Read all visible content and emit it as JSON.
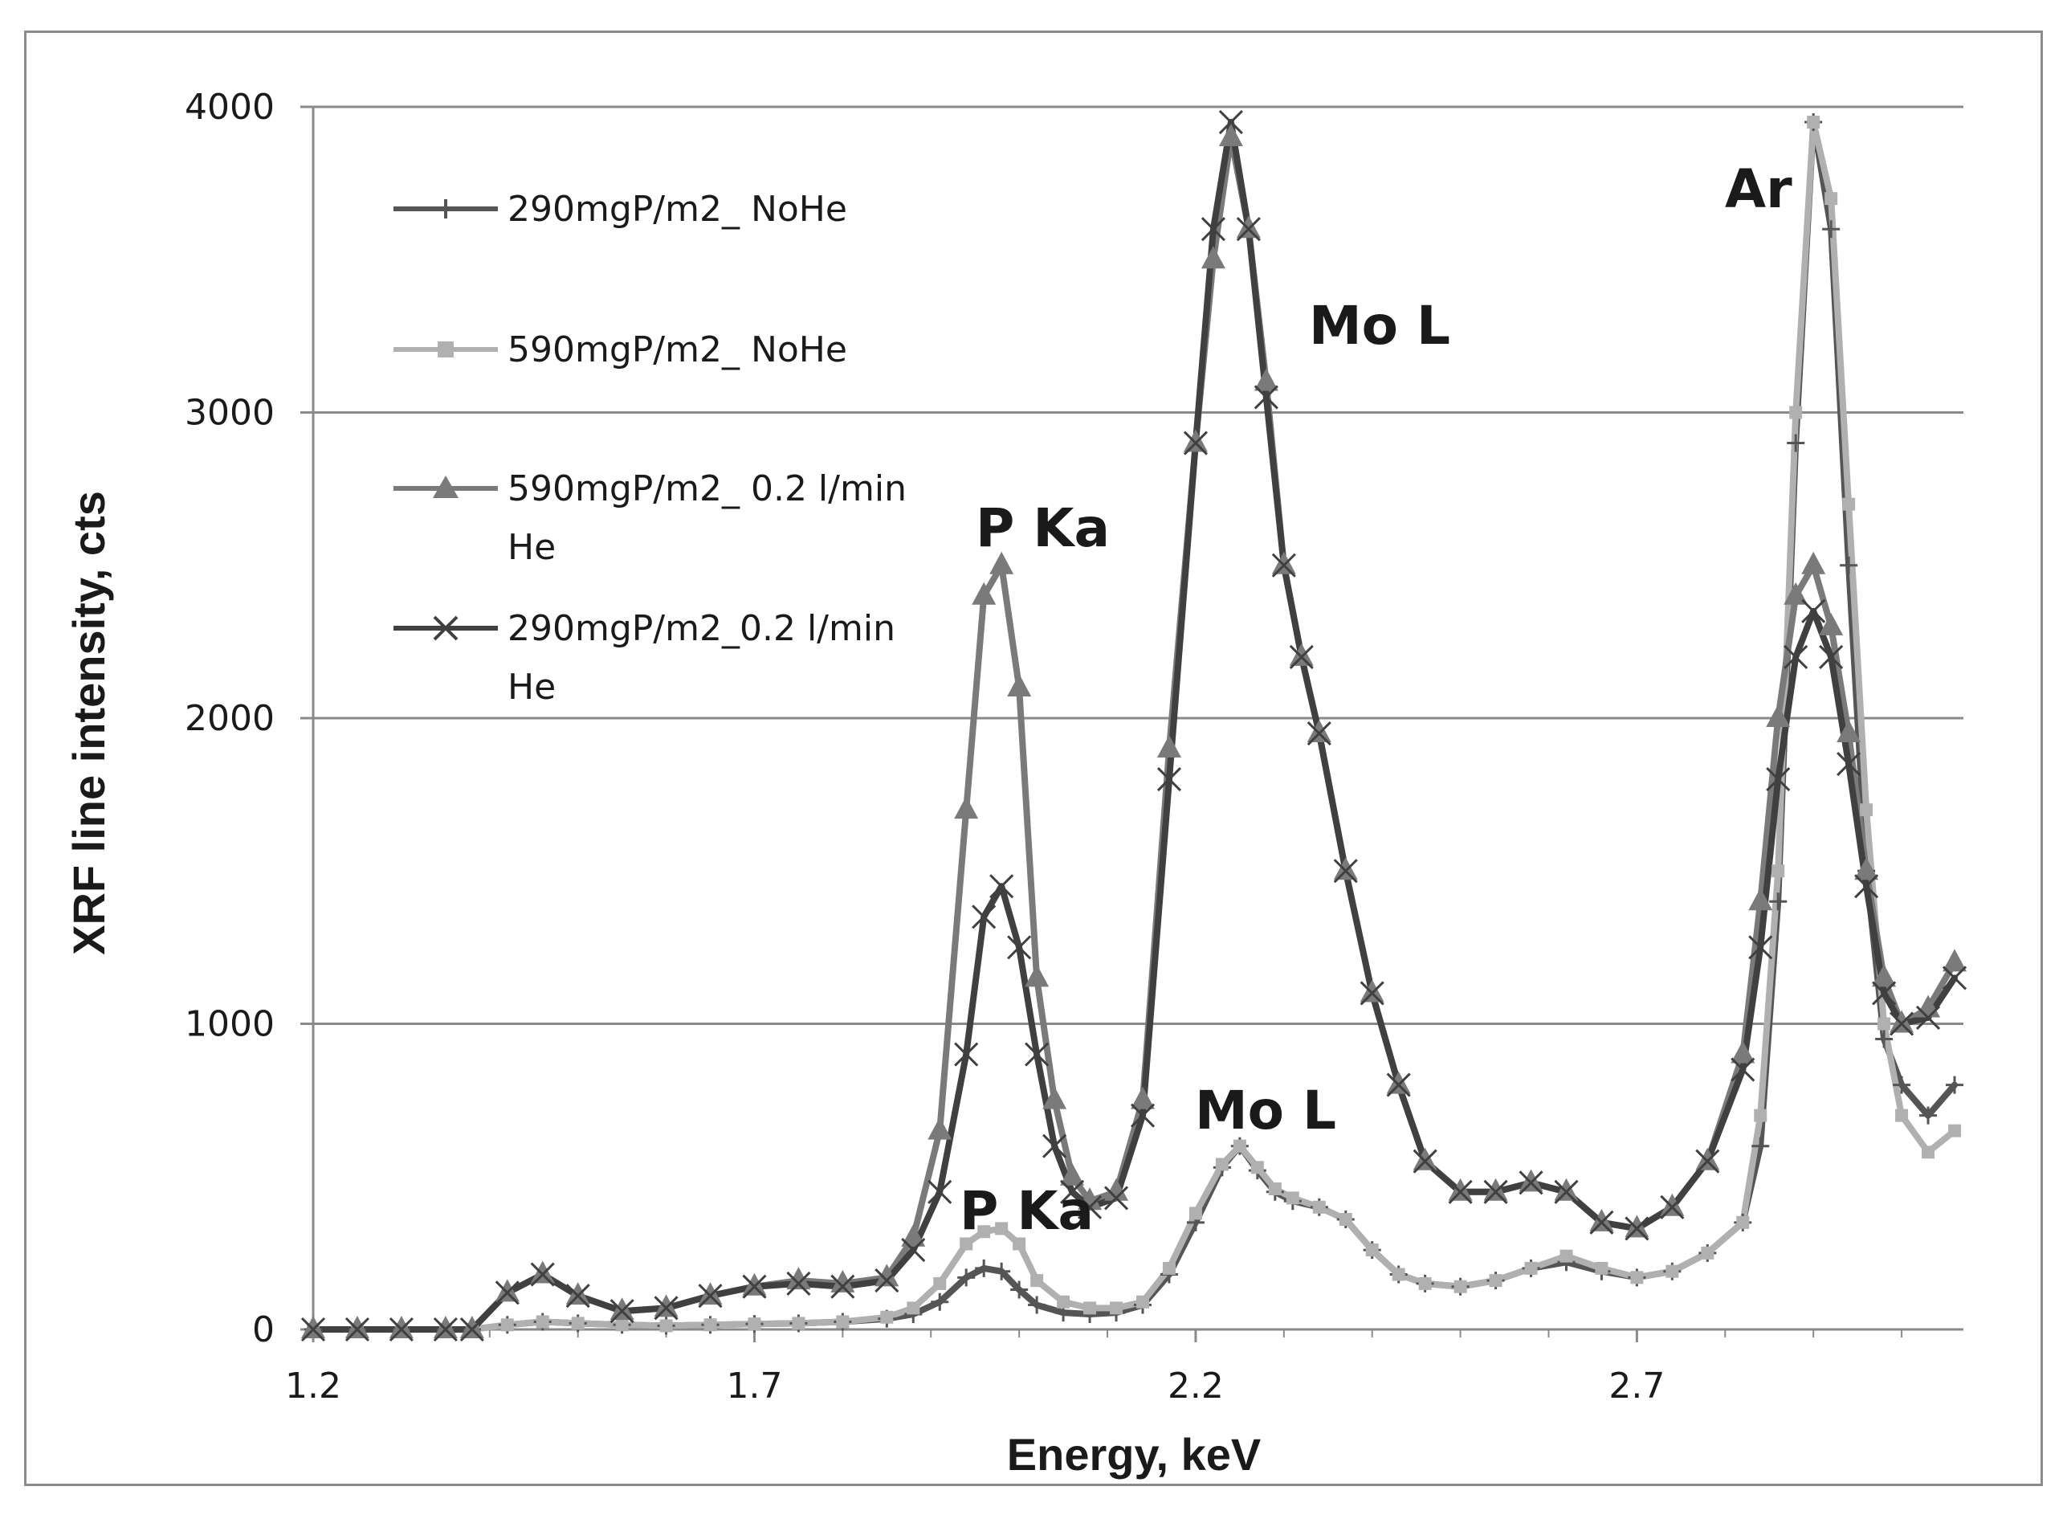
{
  "chart_data": {
    "type": "line",
    "title": "",
    "xlabel": "Energy, keV",
    "ylabel": "XRF line intensity, cts",
    "xlim": [
      1.2,
      3.07
    ],
    "ylim": [
      0,
      4000
    ],
    "xticks": [
      "1.2",
      "1.7",
      "2.2",
      "2.7"
    ],
    "yticks": [
      "0",
      "1000",
      "2000",
      "3000",
      "4000"
    ],
    "grid": "horizontal",
    "legend_position": "top-left",
    "series": [
      {
        "name": "290mgP/m2_ NoHe",
        "color": "#555555",
        "marker": "plus",
        "x": [
          1.2,
          1.25,
          1.3,
          1.35,
          1.38,
          1.42,
          1.46,
          1.5,
          1.55,
          1.6,
          1.65,
          1.7,
          1.75,
          1.8,
          1.85,
          1.88,
          1.91,
          1.94,
          1.96,
          1.98,
          2.0,
          2.02,
          2.05,
          2.08,
          2.11,
          2.14,
          2.17,
          2.2,
          2.23,
          2.25,
          2.27,
          2.29,
          2.31,
          2.34,
          2.37,
          2.4,
          2.43,
          2.46,
          2.5,
          2.54,
          2.58,
          2.62,
          2.66,
          2.7,
          2.74,
          2.78,
          2.82,
          2.84,
          2.86,
          2.88,
          2.9,
          2.92,
          2.94,
          2.96,
          2.98,
          3.0,
          3.03,
          3.06
        ],
        "y": [
          0,
          0,
          0,
          0,
          0,
          15,
          25,
          20,
          15,
          12,
          15,
          18,
          20,
          25,
          35,
          50,
          90,
          170,
          200,
          190,
          130,
          80,
          55,
          50,
          55,
          80,
          180,
          350,
          530,
          600,
          520,
          450,
          420,
          400,
          360,
          260,
          180,
          150,
          140,
          160,
          200,
          220,
          190,
          170,
          190,
          250,
          350,
          600,
          1400,
          2900,
          3950,
          3600,
          2500,
          1500,
          950,
          800,
          700,
          800
        ]
      },
      {
        "name": "590mgP/m2_ NoHe",
        "color": "#b0b0b0",
        "marker": "square",
        "x": [
          1.2,
          1.25,
          1.3,
          1.35,
          1.38,
          1.42,
          1.46,
          1.5,
          1.55,
          1.6,
          1.65,
          1.7,
          1.75,
          1.8,
          1.85,
          1.88,
          1.91,
          1.94,
          1.96,
          1.98,
          2.0,
          2.02,
          2.05,
          2.08,
          2.11,
          2.14,
          2.17,
          2.2,
          2.23,
          2.25,
          2.27,
          2.29,
          2.31,
          2.34,
          2.37,
          2.4,
          2.43,
          2.46,
          2.5,
          2.54,
          2.58,
          2.62,
          2.66,
          2.7,
          2.74,
          2.78,
          2.82,
          2.84,
          2.86,
          2.88,
          2.9,
          2.92,
          2.94,
          2.96,
          2.98,
          3.0,
          3.03,
          3.06
        ],
        "y": [
          0,
          0,
          0,
          0,
          0,
          15,
          25,
          20,
          15,
          12,
          15,
          18,
          20,
          25,
          40,
          70,
          150,
          280,
          320,
          330,
          280,
          160,
          90,
          70,
          70,
          90,
          200,
          380,
          540,
          600,
          530,
          460,
          430,
          400,
          360,
          260,
          180,
          150,
          140,
          160,
          200,
          240,
          200,
          170,
          190,
          250,
          350,
          700,
          1500,
          3000,
          3950,
          3700,
          2700,
          1700,
          1000,
          700,
          580,
          650
        ]
      },
      {
        "name": "590mgP/m2_ 0.2 l/min He",
        "color": "#7a7a7a",
        "marker": "triangle",
        "x": [
          1.2,
          1.25,
          1.3,
          1.35,
          1.38,
          1.42,
          1.46,
          1.5,
          1.55,
          1.6,
          1.65,
          1.7,
          1.75,
          1.8,
          1.85,
          1.88,
          1.91,
          1.94,
          1.96,
          1.98,
          2.0,
          2.02,
          2.04,
          2.06,
          2.08,
          2.11,
          2.14,
          2.17,
          2.2,
          2.22,
          2.24,
          2.26,
          2.28,
          2.3,
          2.32,
          2.34,
          2.37,
          2.4,
          2.43,
          2.46,
          2.5,
          2.54,
          2.58,
          2.62,
          2.66,
          2.7,
          2.74,
          2.78,
          2.82,
          2.84,
          2.86,
          2.88,
          2.9,
          2.92,
          2.94,
          2.96,
          2.98,
          3.0,
          3.03,
          3.06
        ],
        "y": [
          0,
          0,
          0,
          0,
          0,
          120,
          180,
          110,
          60,
          70,
          110,
          140,
          160,
          150,
          170,
          300,
          650,
          1700,
          2400,
          2500,
          2100,
          1150,
          750,
          500,
          420,
          450,
          750,
          1900,
          2900,
          3500,
          3900,
          3600,
          3100,
          2500,
          2200,
          1950,
          1500,
          1100,
          800,
          550,
          450,
          450,
          480,
          450,
          350,
          330,
          400,
          550,
          900,
          1400,
          2000,
          2400,
          2500,
          2300,
          1950,
          1500,
          1150,
          1000,
          1050,
          1200
        ]
      },
      {
        "name": "290mgP/m2_0.2 l/min He",
        "color": "#404040",
        "marker": "x",
        "x": [
          1.2,
          1.25,
          1.3,
          1.35,
          1.38,
          1.42,
          1.46,
          1.5,
          1.55,
          1.6,
          1.65,
          1.7,
          1.75,
          1.8,
          1.85,
          1.88,
          1.91,
          1.94,
          1.96,
          1.98,
          2.0,
          2.02,
          2.04,
          2.06,
          2.08,
          2.11,
          2.14,
          2.17,
          2.2,
          2.22,
          2.24,
          2.26,
          2.28,
          2.3,
          2.32,
          2.34,
          2.37,
          2.4,
          2.43,
          2.46,
          2.5,
          2.54,
          2.58,
          2.62,
          2.66,
          2.7,
          2.74,
          2.78,
          2.82,
          2.84,
          2.86,
          2.88,
          2.9,
          2.92,
          2.94,
          2.96,
          2.98,
          3.0,
          3.03,
          3.06
        ],
        "y": [
          0,
          0,
          0,
          0,
          0,
          120,
          180,
          110,
          60,
          70,
          110,
          140,
          150,
          140,
          160,
          260,
          450,
          900,
          1350,
          1450,
          1250,
          900,
          600,
          450,
          400,
          430,
          700,
          1800,
          2900,
          3600,
          3950,
          3600,
          3050,
          2500,
          2200,
          1950,
          1500,
          1100,
          800,
          550,
          450,
          450,
          480,
          450,
          350,
          330,
          400,
          550,
          850,
          1250,
          1800,
          2200,
          2350,
          2200,
          1850,
          1450,
          1100,
          1000,
          1020,
          1150
        ]
      }
    ],
    "annotations": [
      "P Ka",
      "Mo L",
      "Ar",
      "Mo L",
      "P Ka"
    ]
  }
}
